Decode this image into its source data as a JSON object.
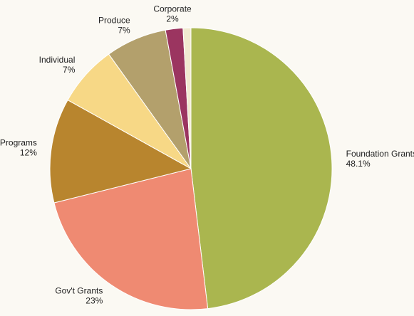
{
  "chart_data": {
    "type": "pie",
    "categories": [
      "Foundation Grants",
      "Gov't Grants",
      "Programs",
      "Individual",
      "Produce",
      "Corporate",
      null
    ],
    "values": [
      48.1,
      23,
      12,
      7,
      7,
      2,
      0.9
    ],
    "value_labels": [
      "48.1%",
      "23%",
      "12%",
      "7%",
      "7%",
      "2%",
      null
    ],
    "colors": [
      "#aab64f",
      "#ef8a72",
      "#b8852e",
      "#f7d886",
      "#b3a06c",
      "#9b3560",
      "#f1ead0"
    ]
  }
}
